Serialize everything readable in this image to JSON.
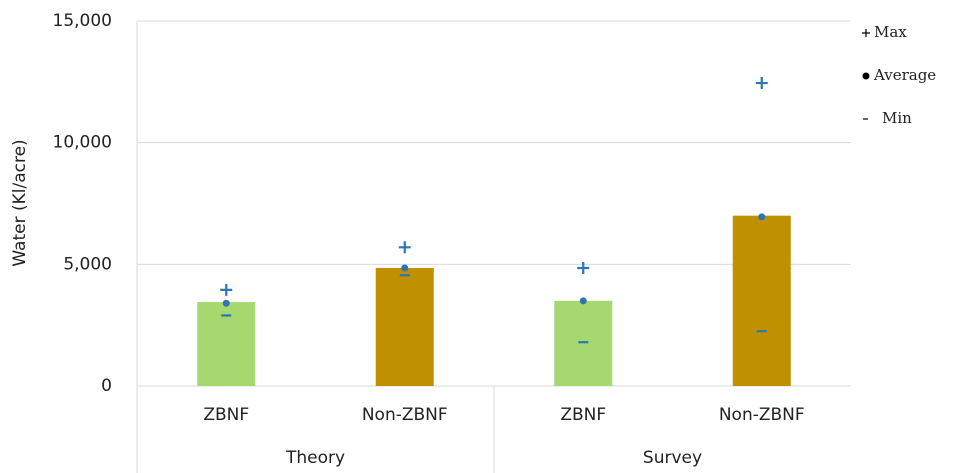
{
  "chart_data": {
    "type": "bar",
    "y_label": "Water (Kl/acre)",
    "categories": [
      "ZBNF",
      "Non-ZBNF",
      "ZBNF",
      "Non-ZBNF"
    ],
    "groups": [
      "Theory",
      "Survey"
    ],
    "values": [
      3450,
      4850,
      3500,
      7000
    ],
    "colors": [
      "#a5d86f",
      "#bf9000",
      "#a5d86f",
      "#bf9000"
    ],
    "series": [
      {
        "name": "Max",
        "marker": "plus",
        "color": "#2e75b6",
        "values": [
          3950,
          5700,
          4850,
          12450
        ]
      },
      {
        "name": "Average",
        "marker": "circle",
        "color": "#2e75b6",
        "values": [
          3400,
          4850,
          3500,
          6950
        ]
      },
      {
        "name": "Min",
        "marker": "dash",
        "color": "#2e75b6",
        "values": [
          2900,
          4550,
          1800,
          2250
        ]
      }
    ],
    "ylim": [
      0,
      15000
    ],
    "yticks": [
      0,
      {
        "value": 5000,
        "label": "5,000"
      },
      {
        "value": 10000,
        "label": "10,000"
      },
      {
        "value": 15000,
        "label": "15,000"
      }
    ],
    "grid": true,
    "legend": "right"
  }
}
